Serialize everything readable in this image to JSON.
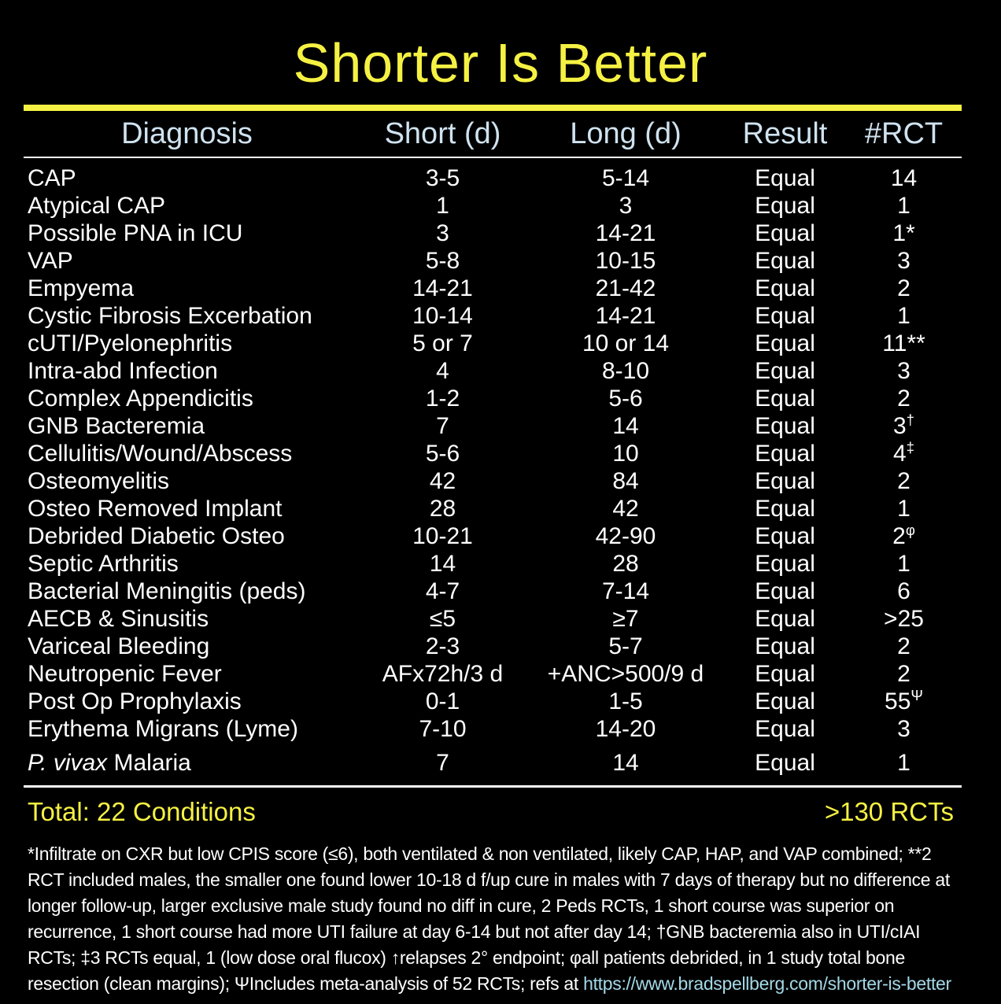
{
  "title": "Shorter Is Better",
  "table": {
    "headers": [
      "Diagnosis",
      "Short (d)",
      "Long (d)",
      "Result",
      "#RCT"
    ],
    "rows": [
      {
        "dxi": "",
        "dx": "CAP",
        "short": "3-5",
        "long": "5-14",
        "result": "Equal",
        "rct": "14",
        "rct_sup": ""
      },
      {
        "dxi": "",
        "dx": "Atypical CAP",
        "short": "1",
        "long": "3",
        "result": "Equal",
        "rct": "1",
        "rct_sup": ""
      },
      {
        "dxi": "",
        "dx": "Possible PNA in ICU",
        "short": "3",
        "long": "14-21",
        "result": "Equal",
        "rct": "1*",
        "rct_sup": ""
      },
      {
        "dxi": "",
        "dx": "VAP",
        "short": "5-8",
        "long": "10-15",
        "result": "Equal",
        "rct": "3",
        "rct_sup": ""
      },
      {
        "dxi": "",
        "dx": "Empyema",
        "short": "14-21",
        "long": "21-42",
        "result": "Equal",
        "rct": "2",
        "rct_sup": ""
      },
      {
        "dxi": "",
        "dx": "Cystic Fibrosis Excerbation",
        "short": "10-14",
        "long": "14-21",
        "result": "Equal",
        "rct": "1",
        "rct_sup": ""
      },
      {
        "dxi": "",
        "dx": "cUTI/Pyelonephritis",
        "short": "5 or 7",
        "long": "10 or 14",
        "result": "Equal",
        "rct": "11**",
        "rct_sup": ""
      },
      {
        "dxi": "",
        "dx": "Intra-abd Infection",
        "short": "4",
        "long": "8-10",
        "result": "Equal",
        "rct": "3",
        "rct_sup": ""
      },
      {
        "dxi": "",
        "dx": "Complex Appendicitis",
        "short": "1-2",
        "long": "5-6",
        "result": "Equal",
        "rct": "2",
        "rct_sup": ""
      },
      {
        "dxi": "",
        "dx": "GNB Bacteremia",
        "short": "7",
        "long": "14",
        "result": "Equal",
        "rct": "3",
        "rct_sup": "†"
      },
      {
        "dxi": "",
        "dx": "Cellulitis/Wound/Abscess",
        "short": "5-6",
        "long": "10",
        "result": "Equal",
        "rct": "4",
        "rct_sup": "‡"
      },
      {
        "dxi": "",
        "dx": "Osteomyelitis",
        "short": "42",
        "long": "84",
        "result": "Equal",
        "rct": "2",
        "rct_sup": ""
      },
      {
        "dxi": "",
        "dx": "Osteo Removed Implant",
        "short": "28",
        "long": "42",
        "result": "Equal",
        "rct": "1",
        "rct_sup": ""
      },
      {
        "dxi": "",
        "dx": "Debrided Diabetic Osteo",
        "short": "10-21",
        "long": "42-90",
        "result": "Equal",
        "rct": "2",
        "rct_sup": "φ"
      },
      {
        "dxi": "",
        "dx": "Septic Arthritis",
        "short": "14",
        "long": "28",
        "result": "Equal",
        "rct": "1",
        "rct_sup": ""
      },
      {
        "dxi": "",
        "dx": "Bacterial Meningitis (peds)",
        "short": "4-7",
        "long": "7-14",
        "result": "Equal",
        "rct": "6",
        "rct_sup": ""
      },
      {
        "dxi": "",
        "dx": "AECB & Sinusitis",
        "short": "≤5",
        "long": "≥7",
        "result": "Equal",
        "rct": ">25",
        "rct_sup": ""
      },
      {
        "dxi": "",
        "dx": "Variceal Bleeding",
        "short": "2-3",
        "long": "5-7",
        "result": "Equal",
        "rct": "2",
        "rct_sup": ""
      },
      {
        "dxi": "",
        "dx": "Neutropenic Fever",
        "short": "AFx72h/3 d",
        "long": "+ANC>500/9 d",
        "result": "Equal",
        "rct": "2",
        "rct_sup": ""
      },
      {
        "dxi": "",
        "dx": "Post Op Prophylaxis",
        "short": "0-1",
        "long": "1-5",
        "result": "Equal",
        "rct": "55",
        "rct_sup": "Ψ"
      },
      {
        "dxi": "",
        "dx": "Erythema Migrans (Lyme)",
        "short": "7-10",
        "long": "14-20",
        "result": "Equal",
        "rct": "3",
        "rct_sup": ""
      },
      {
        "dxi": "P. vivax",
        "dx": " Malaria",
        "short": "7",
        "long": "14",
        "result": "Equal",
        "rct": "1",
        "rct_sup": ""
      }
    ]
  },
  "totals": {
    "conditions": "Total: 22 Conditions",
    "rcts": ">130 RCTs"
  },
  "footnotes": {
    "lines": [
      "*Infiltrate on CXR but low CPIS score (≤6), both ventilated & non ventilated, likely CAP, HAP, and VAP combined; **2",
      "RCT included males, the smaller one found lower 10-18 d f/up cure in males with 7 days of therapy but no difference at",
      "longer follow-up, larger exclusive male study found no diff in cure, 2 Peds RCTs, 1 short course was superior on",
      "recurrence, 1 short course had more UTI failure at day 6-14 but not after day 14; †GNB bacteremia also in UTI/cIAI",
      "RCTs; ‡3 RCTs equal, 1 (low dose oral flucox) ↑relapses 2° endpoint; φall patients debrided, in 1 study total bone"
    ],
    "last_line": "resection (clean margins); ΨIncludes meta-analysis of 52 RCTs; refs at ",
    "link": "https://www.bradspellberg.com/shorter-is-better"
  },
  "colors": {
    "accent_yellow": "#f5f143",
    "header_blue": "#cfe2ef",
    "link_blue": "#a3d9e8",
    "text_white": "#ffffff",
    "background": "#000000"
  }
}
